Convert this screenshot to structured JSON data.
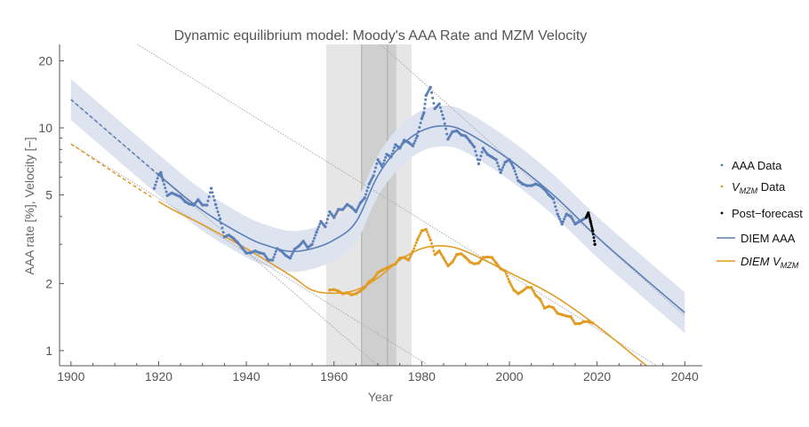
{
  "chart_data": {
    "type": "scatter",
    "title": "Dynamic equilibrium model: Moody's AAA Rate and MZM Velocity",
    "xlabel": "Year",
    "ylabel": "AAA rate [%], Velocity [−]",
    "xlim": [
      1897.4,
      2044
    ],
    "ylim": [
      0.855,
      23.7
    ],
    "y_scale": "log",
    "x_ticks": [
      1900,
      1920,
      1940,
      1960,
      1980,
      2000,
      2020,
      2040
    ],
    "y_ticks": [
      1,
      2,
      5,
      10,
      20
    ],
    "grid": false,
    "legend_position": "right",
    "colors": {
      "aaa": "#5b7fb8",
      "vmzm": "#e19c24",
      "post": "#000000",
      "band": "#dde3ef",
      "shade_light": "#e6e6e6",
      "shade_dark": "#cfcfcf",
      "asymptote": "#aaaaaa"
    },
    "legend": [
      {
        "label": "AAA Data",
        "kind": "dot",
        "color": "#5b7fb8"
      },
      {
        "label": "V",
        "sub": "MZM",
        "suffix": " Data",
        "kind": "dot",
        "color": "#e19c24"
      },
      {
        "label": "Post−forecast",
        "kind": "dot",
        "color": "#000000"
      },
      {
        "label": "DIEM AAA",
        "kind": "line",
        "color": "#5b7fb8"
      },
      {
        "label": "DIEM V",
        "sub": "MZM",
        "suffix": "",
        "kind": "line",
        "color": "#e19c24"
      }
    ],
    "shaded_regions": [
      {
        "from": 1958.2,
        "to": 1977.7,
        "shade": "light"
      },
      {
        "from": 1966.3,
        "to": 1974.2,
        "shade": "dark"
      }
    ],
    "vertical_lines": [
      1966.3,
      1972.2
    ],
    "asymptotes": [
      {
        "points": [
          [
            1915.2,
            23.7
          ],
          [
            2033.9,
            0.848
          ]
        ]
      },
      {
        "points": [
          [
            1970.6,
            23.7
          ],
          [
            2040,
            1.43
          ]
        ]
      },
      {
        "points": [
          [
            1900,
            13.4
          ],
          [
            1970,
            0.855
          ]
        ]
      },
      {
        "points": [
          [
            1900,
            8.47
          ],
          [
            1981.1,
            0.87
          ]
        ]
      }
    ],
    "model_band_multiplier": 1.235,
    "models": [
      {
        "name": "DIEM AAA",
        "color": "#5b7fb8",
        "dashed_before": 1920,
        "band": true,
        "x": [
          1900,
          1920,
          1930,
          1940,
          1945,
          1950,
          1955,
          1960,
          1965,
          1970,
          1975,
          1980,
          1985,
          1990,
          2000,
          2010,
          2020,
          2030,
          2040
        ],
        "y": [
          13.4,
          6.15,
          4.26,
          3.24,
          2.95,
          2.79,
          2.87,
          3.14,
          3.78,
          6.1,
          8.2,
          9.7,
          10.2,
          9.6,
          7.2,
          5.0,
          3.24,
          2.18,
          1.48
        ]
      },
      {
        "name": "DIEM VMZM",
        "color": "#e19c24",
        "dashed_before": 1919,
        "band": false,
        "x": [
          1900,
          1920,
          1930,
          1940,
          1950,
          1955,
          1960,
          1965,
          1970,
          1975,
          1980,
          1985,
          1990,
          2000,
          2010,
          2020,
          2030,
          2034
        ],
        "y": [
          8.47,
          4.67,
          3.68,
          2.87,
          2.18,
          1.87,
          1.81,
          1.87,
          2.12,
          2.55,
          2.87,
          2.95,
          2.79,
          2.24,
          1.77,
          1.29,
          0.896,
          0.78
        ]
      }
    ],
    "series": [
      {
        "name": "AAA Data",
        "color": "#5b7fb8",
        "x": [
          1919,
          1920,
          1920.5,
          1921,
          1922,
          1923,
          1924,
          1925,
          1926,
          1927,
          1928,
          1929,
          1930,
          1931,
          1932,
          1933,
          1934,
          1935,
          1936,
          1937,
          1938,
          1939,
          1940,
          1941,
          1942,
          1943,
          1944,
          1945,
          1946,
          1947,
          1948,
          1949,
          1950,
          1951,
          1952,
          1953,
          1954,
          1955,
          1956,
          1957,
          1958,
          1959,
          1960,
          1961,
          1962,
          1963,
          1964,
          1965,
          1966,
          1967,
          1968,
          1969,
          1970,
          1971,
          1972,
          1973,
          1974,
          1975,
          1976,
          1977,
          1978,
          1979,
          1980,
          1980.5,
          1981,
          1982,
          1983,
          1984,
          1985,
          1986,
          1987,
          1988,
          1989,
          1990,
          1991,
          1992,
          1993,
          1994,
          1995,
          1996,
          1997,
          1998,
          1999,
          2000,
          2001,
          2002,
          2003,
          2004,
          2005,
          2006,
          2007,
          2008,
          2009,
          2010,
          2011,
          2012,
          2013,
          2014,
          2015,
          2016,
          2017
        ],
        "y": [
          5.35,
          6.15,
          6.3,
          5.8,
          4.97,
          5.1,
          5.0,
          4.9,
          4.67,
          4.55,
          4.5,
          4.76,
          4.5,
          4.5,
          5.35,
          4.53,
          3.9,
          3.24,
          3.3,
          3.2,
          3.06,
          2.9,
          2.74,
          2.75,
          2.8,
          2.75,
          2.72,
          2.55,
          2.55,
          2.87,
          2.8,
          2.67,
          2.6,
          2.85,
          2.95,
          3.1,
          2.9,
          3.0,
          3.4,
          3.8,
          3.6,
          4.2,
          3.96,
          4.3,
          4.3,
          4.53,
          4.4,
          4.2,
          4.6,
          4.85,
          5.6,
          6.1,
          7.2,
          6.7,
          7.6,
          7.4,
          8.4,
          8.1,
          8.8,
          8.6,
          8.3,
          9.2,
          11.0,
          11.7,
          14.0,
          15.2,
          12.2,
          12.8,
          11.0,
          8.9,
          9.6,
          9.7,
          9.3,
          9.2,
          8.7,
          8.2,
          6.9,
          8.1,
          7.6,
          7.4,
          7.2,
          6.3,
          7.0,
          7.2,
          6.6,
          5.8,
          5.6,
          5.5,
          5.5,
          5.6,
          5.5,
          5.3,
          5.0,
          4.8,
          4.1,
          3.7,
          4.1,
          4.0,
          3.7,
          3.8,
          3.9
        ]
      },
      {
        "name": "VMZM Data",
        "color": "#e19c24",
        "x": [
          1959,
          1960,
          1961,
          1962,
          1963,
          1964,
          1965,
          1966,
          1967,
          1968,
          1969,
          1970,
          1971,
          1972,
          1973,
          1974,
          1975,
          1976,
          1977,
          1978,
          1979,
          1980,
          1981,
          1982,
          1983,
          1984,
          1985,
          1986,
          1987,
          1988,
          1989,
          1990,
          1991,
          1992,
          1993,
          1994,
          1995,
          1996,
          1997,
          1998,
          1999,
          2000,
          2001,
          2002,
          2003,
          2004,
          2005,
          2006,
          2007,
          2008,
          2009,
          2010,
          2011,
          2012,
          2013,
          2014,
          2015,
          2016,
          2017,
          2018,
          2019
        ],
        "y": [
          1.87,
          1.88,
          1.85,
          1.8,
          1.82,
          1.78,
          1.8,
          1.85,
          1.92,
          2.04,
          2.1,
          2.24,
          2.3,
          2.35,
          2.4,
          2.45,
          2.6,
          2.62,
          2.55,
          2.79,
          3.14,
          3.45,
          3.5,
          3.14,
          2.7,
          2.8,
          2.6,
          2.4,
          2.5,
          2.7,
          2.72,
          2.62,
          2.5,
          2.45,
          2.47,
          2.62,
          2.63,
          2.62,
          2.47,
          2.33,
          2.28,
          2.04,
          1.87,
          1.8,
          1.85,
          1.92,
          1.92,
          1.77,
          1.7,
          1.55,
          1.58,
          1.56,
          1.47,
          1.45,
          1.43,
          1.42,
          1.32,
          1.32,
          1.35,
          1.35,
          1.33
        ]
      },
      {
        "name": "Post-forecast",
        "color": "#000000",
        "x": [
          2017.5,
          2018,
          2018.5,
          2019,
          2019.5
        ],
        "y": [
          3.96,
          4.15,
          3.8,
          3.45,
          3.0
        ]
      }
    ]
  }
}
